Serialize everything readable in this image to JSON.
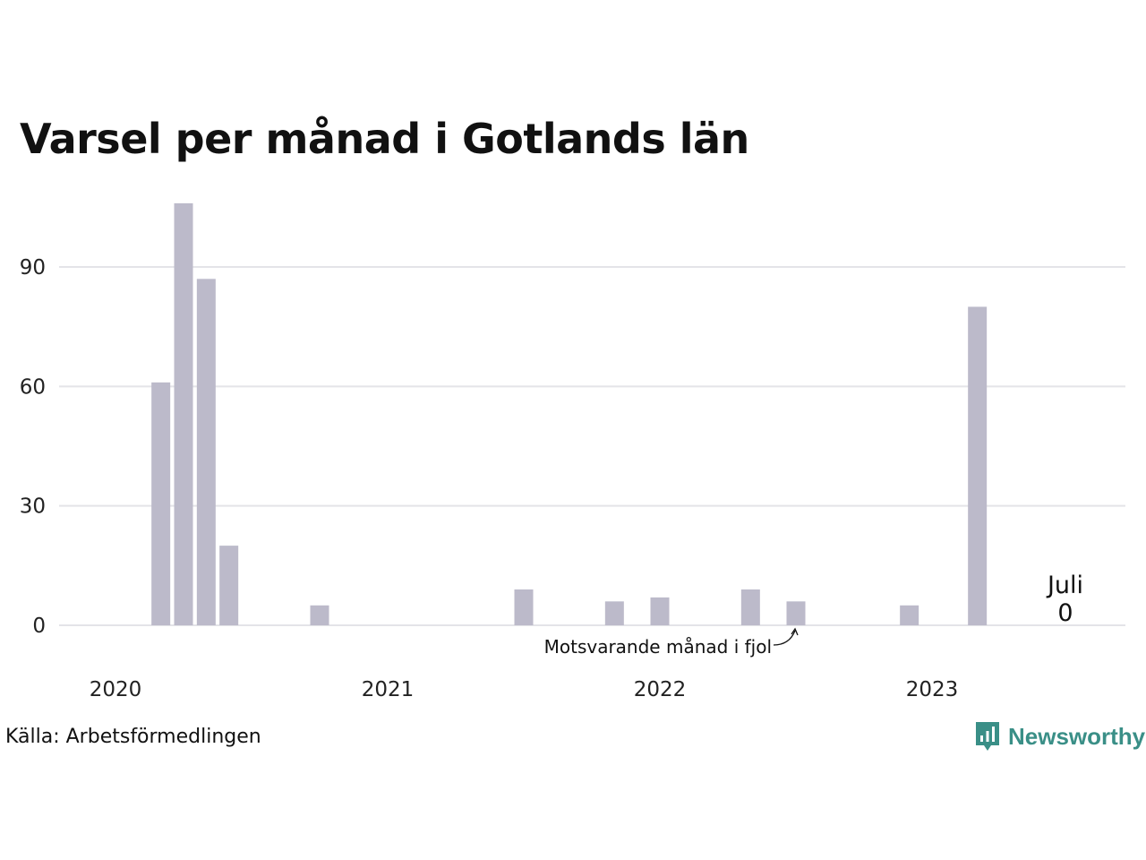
{
  "chart_data": {
    "type": "bar",
    "title": "Varsel per månad i Gotlands län",
    "xlabel": "",
    "ylabel": "",
    "ylim": [
      0,
      108
    ],
    "yticks": [
      0,
      30,
      60,
      90
    ],
    "xticks": [
      "2020",
      "2021",
      "2022",
      "2023"
    ],
    "grid": true,
    "categories": [
      "2020-01",
      "2020-02",
      "2020-03",
      "2020-04",
      "2020-05",
      "2020-06",
      "2020-07",
      "2020-08",
      "2020-09",
      "2020-10",
      "2020-11",
      "2020-12",
      "2021-01",
      "2021-02",
      "2021-03",
      "2021-04",
      "2021-05",
      "2021-06",
      "2021-07",
      "2021-08",
      "2021-09",
      "2021-10",
      "2021-11",
      "2021-12",
      "2022-01",
      "2022-02",
      "2022-03",
      "2022-04",
      "2022-05",
      "2022-06",
      "2022-07",
      "2022-08",
      "2022-09",
      "2022-10",
      "2022-11",
      "2022-12",
      "2023-01",
      "2023-02",
      "2023-03",
      "2023-04",
      "2023-05",
      "2023-06",
      "2023-07"
    ],
    "values": [
      0,
      0,
      61,
      106,
      87,
      20,
      0,
      0,
      0,
      5,
      0,
      0,
      0,
      0,
      0,
      0,
      0,
      0,
      9,
      0,
      0,
      0,
      6,
      0,
      7,
      0,
      0,
      0,
      9,
      0,
      6,
      0,
      0,
      0,
      0,
      5,
      0,
      0,
      80,
      0,
      0,
      0,
      0
    ],
    "bar_color": "#bcbaca",
    "grid_color": "#e4e4e8",
    "annotations": {
      "last_label": "Juli",
      "last_value": "0",
      "prev_year_label": "Motsvarande månad i fjol"
    }
  },
  "footer": {
    "source": "Källa: Arbetsförmedlingen",
    "brand": "Newsworthy",
    "brand_color": "#3a8f87",
    "brand_icon": "bar-chart-speech-bubble-icon"
  }
}
